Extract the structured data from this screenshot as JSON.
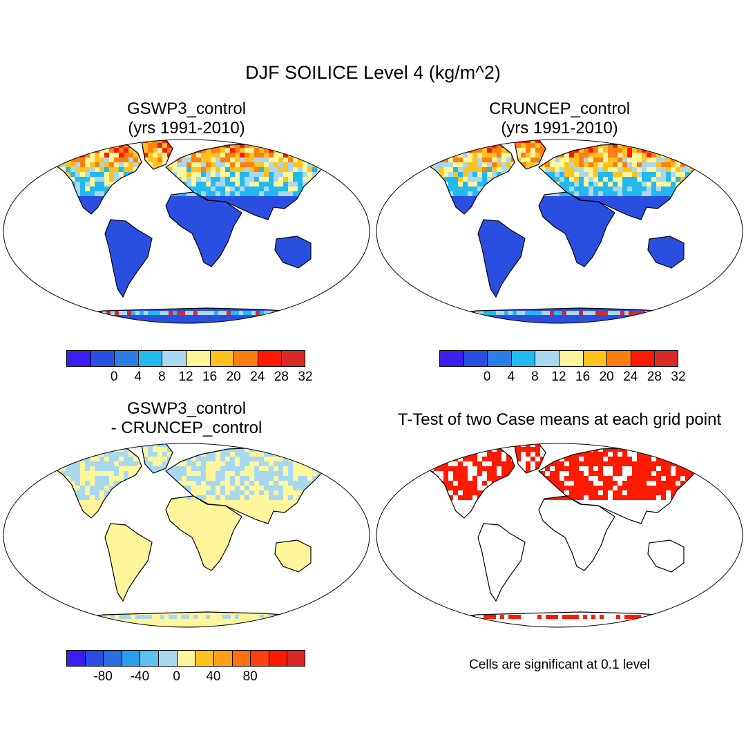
{
  "figure": {
    "title": "DJF SOILICE Level 4 (kg/m^2)"
  },
  "panels": {
    "gswp3": {
      "title_line1": "GSWP3_control",
      "title_line2": "(yrs 1991-2010)"
    },
    "cruncep": {
      "title_line1": "CRUNCEP_control",
      "title_line2": "(yrs 1991-2010)"
    },
    "diff": {
      "title_line1": "GSWP3_control",
      "title_line2": "- CRUNCEP_control"
    },
    "ttest": {
      "title": "T-Test of two Case means at each grid point",
      "note": "Cells are significant at 0.1 level"
    }
  },
  "colorbars": {
    "absolute": {
      "colors": [
        "#3a1ef0",
        "#2a4fe0",
        "#2a7ee8",
        "#22b8f0",
        "#a8d8f0",
        "#fff59a",
        "#ffc21e",
        "#ff7e10",
        "#ff1a00",
        "#d82828"
      ],
      "labels": [
        "0",
        "4",
        "8",
        "12",
        "16",
        "20",
        "24",
        "28",
        "32"
      ]
    },
    "difference": {
      "colors": [
        "#3a1ef0",
        "#2a4fe0",
        "#2a6ee0",
        "#2aa0ec",
        "#5cc0f0",
        "#a8d8f0",
        "#fff59a",
        "#ffc21e",
        "#ffa010",
        "#ff7010",
        "#ff4010",
        "#ff1a00",
        "#d82828"
      ],
      "labels": [
        "-80",
        "-40",
        "0",
        "40",
        "80"
      ]
    }
  },
  "map_colors": {
    "land_low": "#2a4fe0",
    "ocean": "#ffffff",
    "diff_land": "#fff59a",
    "diff_north": "#a8d8f0",
    "significant": "#ff1a00"
  }
}
